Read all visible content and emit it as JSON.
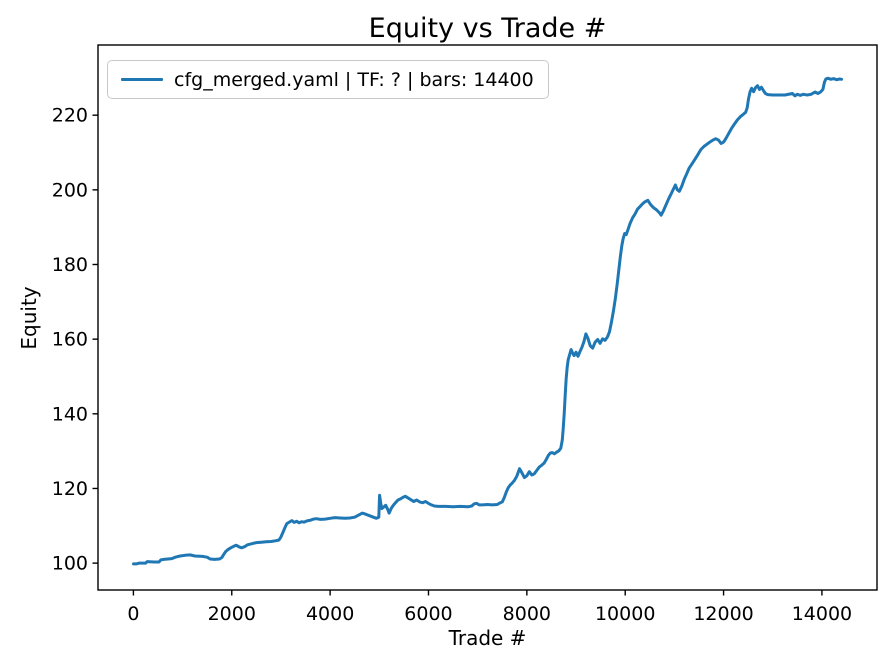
{
  "chart_data": {
    "type": "line",
    "title": "Equity vs Trade #",
    "xlabel": "Trade #",
    "ylabel": "Equity",
    "grid": false,
    "xlim": [
      -720,
      15120
    ],
    "ylim": [
      92.8,
      238.8
    ],
    "x_ticks": [
      0,
      2000,
      4000,
      6000,
      8000,
      10000,
      12000,
      14000
    ],
    "y_ticks": [
      100,
      120,
      140,
      160,
      180,
      200,
      220
    ],
    "axis_color": "#000000",
    "legend": {
      "position": "upper-left",
      "entries": [
        {
          "label": "cfg_merged.yaml | TF: ? | bars: 14400",
          "color": "#1f77b4"
        }
      ]
    },
    "series": [
      {
        "name": "cfg_merged.yaml | TF: ? | bars: 14400",
        "color": "#1f77b4",
        "points": [
          [
            1,
            99.8
          ],
          [
            60,
            99.8
          ],
          [
            120,
            100.0
          ],
          [
            250,
            100.0
          ],
          [
            280,
            100.4
          ],
          [
            420,
            100.3
          ],
          [
            520,
            100.3
          ],
          [
            560,
            100.9
          ],
          [
            620,
            101.0
          ],
          [
            700,
            101.1
          ],
          [
            780,
            101.2
          ],
          [
            850,
            101.6
          ],
          [
            950,
            101.9
          ],
          [
            1050,
            102.1
          ],
          [
            1150,
            102.2
          ],
          [
            1250,
            101.9
          ],
          [
            1400,
            101.8
          ],
          [
            1500,
            101.6
          ],
          [
            1560,
            101.1
          ],
          [
            1650,
            101.0
          ],
          [
            1750,
            101.1
          ],
          [
            1800,
            101.5
          ],
          [
            1830,
            102.2
          ],
          [
            1870,
            103.0
          ],
          [
            1920,
            103.6
          ],
          [
            1980,
            104.1
          ],
          [
            2040,
            104.5
          ],
          [
            2090,
            104.8
          ],
          [
            2140,
            104.4
          ],
          [
            2200,
            104.1
          ],
          [
            2260,
            104.4
          ],
          [
            2320,
            104.9
          ],
          [
            2380,
            105.1
          ],
          [
            2440,
            105.3
          ],
          [
            2500,
            105.5
          ],
          [
            2600,
            105.6
          ],
          [
            2700,
            105.7
          ],
          [
            2800,
            105.8
          ],
          [
            2900,
            106.0
          ],
          [
            2960,
            106.2
          ],
          [
            3000,
            107.0
          ],
          [
            3040,
            108.2
          ],
          [
            3080,
            109.5
          ],
          [
            3120,
            110.6
          ],
          [
            3170,
            111.0
          ],
          [
            3220,
            111.4
          ],
          [
            3270,
            110.9
          ],
          [
            3320,
            111.2
          ],
          [
            3370,
            110.8
          ],
          [
            3420,
            111.1
          ],
          [
            3470,
            111.0
          ],
          [
            3530,
            111.3
          ],
          [
            3600,
            111.5
          ],
          [
            3660,
            111.8
          ],
          [
            3720,
            111.9
          ],
          [
            3800,
            111.7
          ],
          [
            3900,
            111.8
          ],
          [
            4000,
            112.0
          ],
          [
            4100,
            112.2
          ],
          [
            4200,
            112.1
          ],
          [
            4300,
            112.0
          ],
          [
            4400,
            112.1
          ],
          [
            4500,
            112.3
          ],
          [
            4600,
            113.0
          ],
          [
            4650,
            113.4
          ],
          [
            4700,
            113.2
          ],
          [
            4780,
            112.8
          ],
          [
            4860,
            112.4
          ],
          [
            4940,
            112.0
          ],
          [
            4990,
            112.3
          ],
          [
            5005,
            118.2
          ],
          [
            5030,
            115.9
          ],
          [
            5050,
            114.6
          ],
          [
            5090,
            115.0
          ],
          [
            5130,
            115.5
          ],
          [
            5170,
            114.4
          ],
          [
            5200,
            113.4
          ],
          [
            5240,
            114.6
          ],
          [
            5280,
            115.4
          ],
          [
            5330,
            116.2
          ],
          [
            5380,
            116.9
          ],
          [
            5430,
            117.2
          ],
          [
            5480,
            117.6
          ],
          [
            5530,
            117.9
          ],
          [
            5580,
            117.5
          ],
          [
            5640,
            117.0
          ],
          [
            5700,
            116.5
          ],
          [
            5760,
            116.9
          ],
          [
            5820,
            116.4
          ],
          [
            5880,
            116.2
          ],
          [
            5940,
            116.5
          ],
          [
            6000,
            116.0
          ],
          [
            6060,
            115.6
          ],
          [
            6120,
            115.3
          ],
          [
            6200,
            115.2
          ],
          [
            6350,
            115.2
          ],
          [
            6500,
            115.1
          ],
          [
            6650,
            115.2
          ],
          [
            6800,
            115.1
          ],
          [
            6880,
            115.3
          ],
          [
            6930,
            115.9
          ],
          [
            6980,
            116.0
          ],
          [
            7030,
            115.6
          ],
          [
            7100,
            115.6
          ],
          [
            7200,
            115.7
          ],
          [
            7300,
            115.6
          ],
          [
            7400,
            115.7
          ],
          [
            7450,
            116.1
          ],
          [
            7500,
            116.4
          ],
          [
            7540,
            117.5
          ],
          [
            7580,
            119.0
          ],
          [
            7620,
            120.2
          ],
          [
            7660,
            120.9
          ],
          [
            7700,
            121.4
          ],
          [
            7750,
            122.2
          ],
          [
            7800,
            123.4
          ],
          [
            7850,
            125.3
          ],
          [
            7900,
            124.2
          ],
          [
            7950,
            122.9
          ],
          [
            8000,
            123.4
          ],
          [
            8050,
            124.5
          ],
          [
            8100,
            123.6
          ],
          [
            8150,
            123.9
          ],
          [
            8200,
            124.8
          ],
          [
            8250,
            125.7
          ],
          [
            8300,
            126.2
          ],
          [
            8350,
            126.8
          ],
          [
            8400,
            127.9
          ],
          [
            8440,
            128.9
          ],
          [
            8480,
            129.5
          ],
          [
            8520,
            129.6
          ],
          [
            8560,
            129.3
          ],
          [
            8600,
            129.7
          ],
          [
            8650,
            130.1
          ],
          [
            8690,
            130.8
          ],
          [
            8720,
            133.0
          ],
          [
            8740,
            136.0
          ],
          [
            8760,
            140.0
          ],
          [
            8780,
            145.0
          ],
          [
            8800,
            149.5
          ],
          [
            8820,
            152.5
          ],
          [
            8840,
            154.5
          ],
          [
            8870,
            155.8
          ],
          [
            8900,
            157.2
          ],
          [
            8930,
            156.3
          ],
          [
            8960,
            155.6
          ],
          [
            9000,
            156.5
          ],
          [
            9040,
            155.4
          ],
          [
            9080,
            156.7
          ],
          [
            9120,
            157.8
          ],
          [
            9160,
            159.3
          ],
          [
            9200,
            161.4
          ],
          [
            9240,
            160.3
          ],
          [
            9290,
            158.2
          ],
          [
            9340,
            157.6
          ],
          [
            9390,
            159.2
          ],
          [
            9440,
            159.9
          ],
          [
            9490,
            158.9
          ],
          [
            9540,
            160.1
          ],
          [
            9590,
            159.7
          ],
          [
            9640,
            160.6
          ],
          [
            9680,
            162.0
          ],
          [
            9720,
            164.5
          ],
          [
            9760,
            167.5
          ],
          [
            9800,
            171.0
          ],
          [
            9840,
            175.0
          ],
          [
            9870,
            178.5
          ],
          [
            9900,
            182.0
          ],
          [
            9930,
            185.0
          ],
          [
            9960,
            187.0
          ],
          [
            9990,
            188.3
          ],
          [
            10020,
            188.0
          ],
          [
            10060,
            189.5
          ],
          [
            10100,
            191.0
          ],
          [
            10150,
            192.5
          ],
          [
            10200,
            193.5
          ],
          [
            10250,
            194.8
          ],
          [
            10300,
            195.5
          ],
          [
            10350,
            196.2
          ],
          [
            10400,
            196.8
          ],
          [
            10460,
            197.2
          ],
          [
            10520,
            196.0
          ],
          [
            10580,
            195.2
          ],
          [
            10640,
            194.6
          ],
          [
            10700,
            193.8
          ],
          [
            10730,
            193.2
          ],
          [
            10780,
            194.5
          ],
          [
            10830,
            196.0
          ],
          [
            10880,
            197.5
          ],
          [
            10930,
            198.8
          ],
          [
            10980,
            200.2
          ],
          [
            11020,
            201.3
          ],
          [
            11060,
            200.0
          ],
          [
            11100,
            199.6
          ],
          [
            11150,
            201.0
          ],
          [
            11200,
            202.8
          ],
          [
            11250,
            204.3
          ],
          [
            11300,
            205.8
          ],
          [
            11360,
            207.0
          ],
          [
            11420,
            208.2
          ],
          [
            11480,
            209.5
          ],
          [
            11540,
            210.8
          ],
          [
            11600,
            211.6
          ],
          [
            11660,
            212.2
          ],
          [
            11720,
            212.8
          ],
          [
            11780,
            213.3
          ],
          [
            11840,
            213.7
          ],
          [
            11900,
            213.3
          ],
          [
            11950,
            212.4
          ],
          [
            12000,
            212.8
          ],
          [
            12050,
            213.8
          ],
          [
            12100,
            215.0
          ],
          [
            12160,
            216.4
          ],
          [
            12220,
            217.6
          ],
          [
            12280,
            218.7
          ],
          [
            12340,
            219.6
          ],
          [
            12400,
            220.2
          ],
          [
            12450,
            220.8
          ],
          [
            12480,
            222.0
          ],
          [
            12510,
            224.5
          ],
          [
            12540,
            226.3
          ],
          [
            12570,
            227.2
          ],
          [
            12610,
            226.3
          ],
          [
            12650,
            227.4
          ],
          [
            12690,
            227.9
          ],
          [
            12730,
            226.9
          ],
          [
            12770,
            227.5
          ],
          [
            12810,
            226.6
          ],
          [
            12850,
            225.8
          ],
          [
            12900,
            225.5
          ],
          [
            13000,
            225.4
          ],
          [
            13100,
            225.4
          ],
          [
            13250,
            225.4
          ],
          [
            13400,
            225.8
          ],
          [
            13450,
            225.2
          ],
          [
            13500,
            225.6
          ],
          [
            13560,
            225.3
          ],
          [
            13620,
            225.6
          ],
          [
            13700,
            225.4
          ],
          [
            13780,
            225.6
          ],
          [
            13860,
            226.2
          ],
          [
            13920,
            225.8
          ],
          [
            13980,
            226.3
          ],
          [
            14020,
            226.9
          ],
          [
            14050,
            228.8
          ],
          [
            14080,
            229.7
          ],
          [
            14120,
            229.9
          ],
          [
            14180,
            229.6
          ],
          [
            14240,
            229.8
          ],
          [
            14300,
            229.5
          ],
          [
            14360,
            229.7
          ],
          [
            14400,
            229.6
          ]
        ]
      }
    ]
  }
}
